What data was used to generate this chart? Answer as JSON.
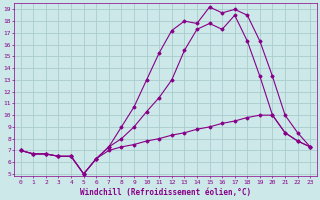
{
  "xlabel": "Windchill (Refroidissement éolien,°C)",
  "bg_color": "#cce8e8",
  "grid_color": "#aacccc",
  "line_color": "#880088",
  "xlim": [
    -0.5,
    23.5
  ],
  "ylim": [
    4.8,
    19.5
  ],
  "xticks": [
    0,
    1,
    2,
    3,
    4,
    5,
    6,
    7,
    8,
    9,
    10,
    11,
    12,
    13,
    14,
    15,
    16,
    17,
    18,
    19,
    20,
    21,
    22,
    23
  ],
  "yticks": [
    5,
    6,
    7,
    8,
    9,
    10,
    11,
    12,
    13,
    14,
    15,
    16,
    17,
    18,
    19
  ],
  "line1_x": [
    0,
    1,
    2,
    3,
    4,
    5,
    6,
    7,
    8,
    9,
    10,
    11,
    12,
    13,
    14,
    15,
    16,
    17,
    18,
    19,
    20,
    21,
    22,
    23
  ],
  "line1_y": [
    7.0,
    6.7,
    6.7,
    6.5,
    6.5,
    5.0,
    6.3,
    7.0,
    7.3,
    7.5,
    7.8,
    8.0,
    8.3,
    8.5,
    8.8,
    9.0,
    9.3,
    9.5,
    9.8,
    10.0,
    10.0,
    8.5,
    7.8,
    7.3
  ],
  "line2_x": [
    0,
    1,
    2,
    3,
    4,
    5,
    6,
    7,
    8,
    9,
    10,
    11,
    12,
    13,
    14,
    15,
    16,
    17,
    18,
    19,
    20,
    21,
    22,
    23
  ],
  "line2_y": [
    7.0,
    6.7,
    6.7,
    6.5,
    6.5,
    5.0,
    6.3,
    7.3,
    9.0,
    10.7,
    13.0,
    15.3,
    17.2,
    18.0,
    17.8,
    19.2,
    18.7,
    19.0,
    18.5,
    16.3,
    13.3,
    10.0,
    8.5,
    7.3
  ],
  "line3_x": [
    0,
    1,
    2,
    3,
    4,
    5,
    6,
    7,
    8,
    9,
    10,
    11,
    12,
    13,
    14,
    15,
    16,
    17,
    18,
    19,
    20,
    21,
    22,
    23
  ],
  "line3_y": [
    7.0,
    6.7,
    6.7,
    6.5,
    6.5,
    5.0,
    6.3,
    7.3,
    8.0,
    9.0,
    10.3,
    11.5,
    13.0,
    15.5,
    17.3,
    17.8,
    17.3,
    18.5,
    16.3,
    13.3,
    10.0,
    8.5,
    7.8,
    7.3
  ]
}
